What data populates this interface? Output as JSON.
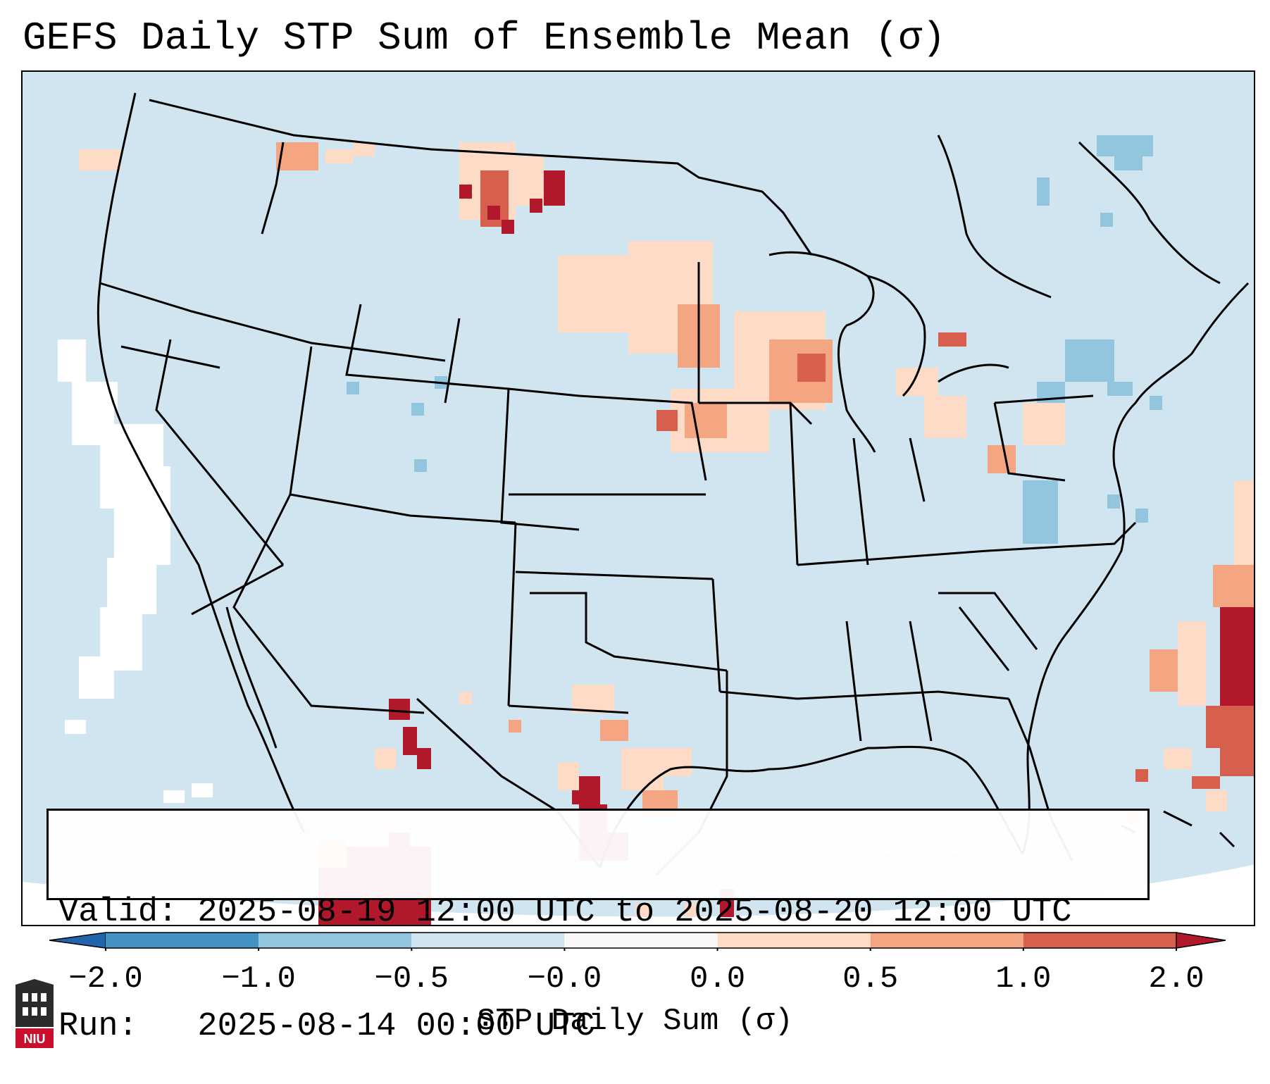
{
  "title": "GEFS Daily STP Sum of Ensemble Mean (σ)",
  "info": {
    "valid_line": "Valid: 2025-08-19 12:00 UTC to 2025-08-20 12:00 UTC",
    "run_line": "Run:   2025-08-14 00:00 UTC"
  },
  "colorbar": {
    "label": "STP Daily Sum (σ)",
    "ticks": [
      "−2.0",
      "−1.0",
      "−0.5",
      "−0.0",
      "0.0",
      "0.5",
      "1.0",
      "2.0"
    ],
    "bins": [
      {
        "range": "-2.0 to -1.0",
        "color": "#4392c3"
      },
      {
        "range": "-1.0 to -0.5",
        "color": "#92c5de"
      },
      {
        "range": "-0.5 to -0.0",
        "color": "#d1e5f0"
      },
      {
        "range": "-0.0 to 0.0",
        "color": "#f7f7f7"
      },
      {
        "range": "0.0 to 0.5",
        "color": "#fddbc7"
      },
      {
        "range": "0.5 to 1.0",
        "color": "#f4a582"
      },
      {
        "range": "1.0 to 2.0",
        "color": "#d6604d"
      }
    ],
    "under_color": "#2166ac",
    "over_color": "#b2182b"
  },
  "map": {
    "background_color": "#d1e5f0",
    "region": "Continental United States",
    "logo_text": "NIU"
  }
}
